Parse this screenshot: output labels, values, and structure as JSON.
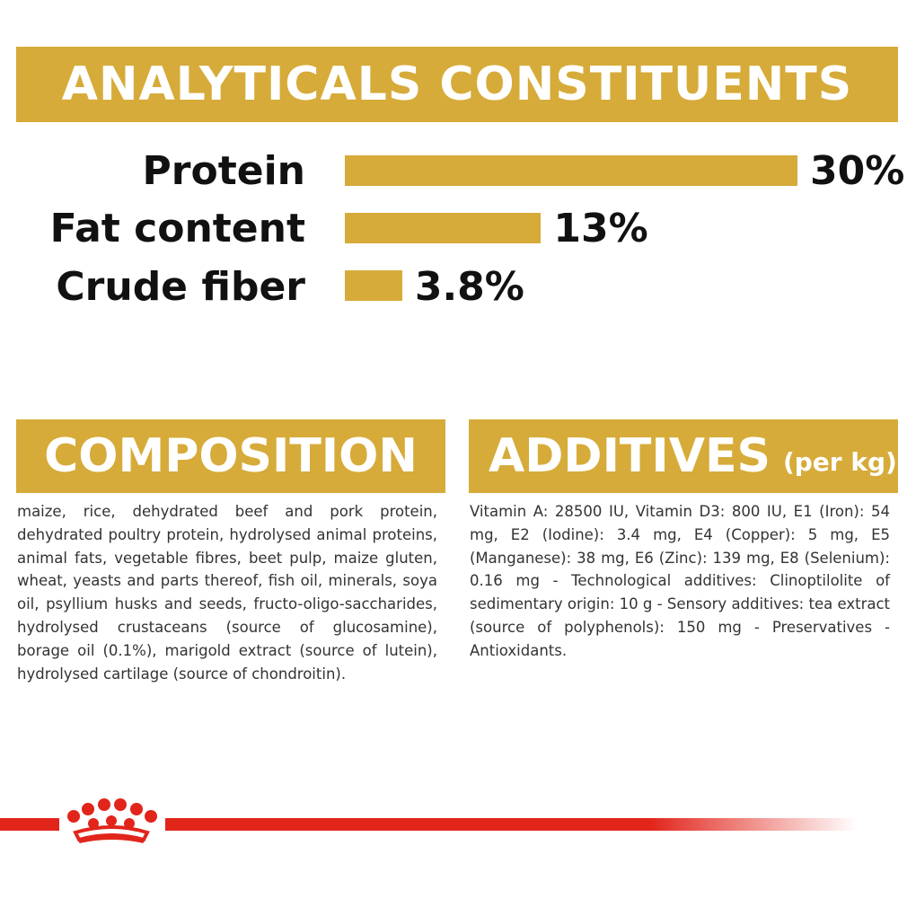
{
  "header": {
    "title": "ANALYTICALS CONSTITUENTS"
  },
  "analytics": {
    "rows": [
      {
        "label": "Protein",
        "value": "30%",
        "percent": 30
      },
      {
        "label": "Fat content",
        "value": "13%",
        "percent": 13
      },
      {
        "label": "Crude fiber",
        "value": "3.8%",
        "percent": 3.8
      }
    ]
  },
  "composition": {
    "title": "COMPOSITION",
    "text": "maize, rice, dehydrated beef and pork protein, dehydrated poultry protein, hydrolysed animal proteins, animal fats, vegetable fibres, beet pulp, maize gluten, wheat, yeasts and parts thereof, fish oil, minerals, soya oil, psyllium husks and seeds, fructo-oligo-saccharides, hydrolysed crustaceans (source of glucosamine), borage oil (0.1%), marigold extract (source of lutein), hydrolysed cartilage (source of chondroitin)."
  },
  "additives": {
    "title": "ADDITIVES",
    "subtitle": "(per kg)",
    "text": "Vitamin A: 28500 IU, Vitamin D3: 800 IU, E1 (Iron): 54 mg, E2 (Iodine): 3.4 mg, E4 (Copper): 5 mg, E5 (Manganese): 38 mg, E6 (Zinc): 139 mg, E8 (Selenium): 0.16 mg - Technological additives: Clinoptilolite of sedimentary origin: 10 g - Sensory additives: tea extract (source of polyphenols): 150 mg - Preservatives - Antioxidants."
  },
  "colors": {
    "accent": "#D6AB39",
    "brand_red": "#E1251B",
    "text": "#111111"
  },
  "footer": {
    "logo_icon": "crown-icon"
  }
}
